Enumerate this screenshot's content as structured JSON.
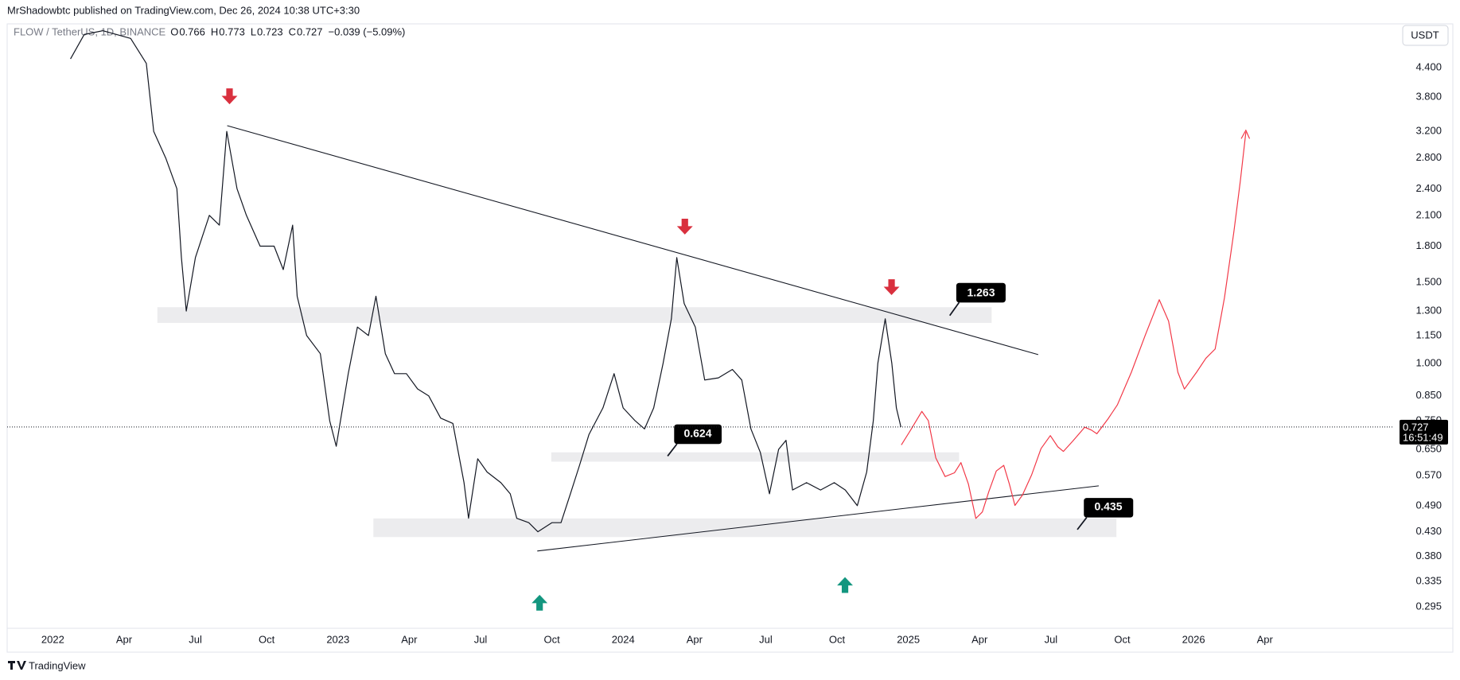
{
  "header": {
    "publisher": "MrShadowbtc published on TradingView.com, Dec 26, 2024 10:38 UTC+3:30",
    "symbol": "FLOW / TetherUS, 1D, BINANCE",
    "ohlc": [
      {
        "label": "O",
        "value": 0.766
      },
      {
        "label": "H",
        "value": 0.773
      },
      {
        "label": "L",
        "value": 0.723
      },
      {
        "label": "C",
        "value": 0.727
      }
    ],
    "change": "−0.039 (−5.09%)",
    "currency": "USDT"
  },
  "chart_data": {
    "type": "line",
    "log_scale": true,
    "color": "#131722",
    "grid": false,
    "x": [
      2022.062,
      2022.11,
      2022.175,
      2022.273,
      2022.328,
      2022.354,
      2022.396,
      2022.435,
      2022.451,
      2022.468,
      2022.5,
      2022.549,
      2022.584,
      2022.61,
      2022.646,
      2022.679,
      2022.727,
      2022.776,
      2022.808,
      2022.841,
      2022.857,
      2022.89,
      2022.938,
      2022.971,
      2022.994,
      2023.036,
      2023.068,
      2023.107,
      2023.133,
      2023.166,
      2023.198,
      2023.24,
      2023.279,
      2023.318,
      2023.36,
      2023.403,
      2023.442,
      2023.458,
      2023.49,
      2023.523,
      2023.571,
      2023.604,
      2023.627,
      2023.669,
      2023.701,
      2023.75,
      2023.782,
      2023.815,
      2023.847,
      2023.88,
      2023.929,
      2023.968,
      2024.0,
      2024.042,
      2024.075,
      2024.107,
      2024.14,
      2024.169,
      2024.188,
      2024.214,
      2024.253,
      2024.286,
      2024.334,
      2024.383,
      2024.416,
      2024.448,
      2024.481,
      2024.513,
      2024.545,
      2024.571,
      2024.594,
      2024.643,
      2024.692,
      2024.74,
      2024.779,
      2024.821,
      2024.854,
      2024.877,
      2024.893,
      2024.919,
      2024.942,
      2024.958,
      2024.974
    ],
    "values": [
      4.6,
      5.2,
      5.3,
      5.1,
      4.5,
      3.2,
      2.8,
      2.4,
      1.7,
      1.3,
      1.7,
      2.1,
      2.0,
      3.2,
      2.4,
      2.1,
      1.8,
      1.8,
      1.6,
      2.0,
      1.4,
      1.15,
      1.05,
      0.75,
      0.66,
      0.95,
      1.2,
      1.15,
      1.4,
      1.05,
      0.95,
      0.95,
      0.88,
      0.85,
      0.76,
      0.74,
      0.55,
      0.46,
      0.62,
      0.58,
      0.55,
      0.52,
      0.46,
      0.45,
      0.43,
      0.45,
      0.45,
      0.52,
      0.6,
      0.7,
      0.8,
      0.95,
      0.8,
      0.75,
      0.72,
      0.8,
      1.0,
      1.25,
      1.7,
      1.35,
      1.2,
      0.92,
      0.93,
      0.97,
      0.92,
      0.72,
      0.64,
      0.52,
      0.65,
      0.68,
      0.53,
      0.55,
      0.53,
      0.55,
      0.53,
      0.49,
      0.58,
      0.75,
      1.0,
      1.25,
      1.0,
      0.8,
      0.727
    ],
    "xlim": [
      2021.84,
      2026.7
    ],
    "ylim": [
      0.265,
      5.42
    ],
    "xticks": [
      2022,
      {
        "value": 2022.25,
        "label": "Apr"
      },
      {
        "value": 2022.5,
        "label": "Jul"
      },
      {
        "value": 2022.75,
        "label": "Oct"
      },
      2023,
      {
        "value": 2023.25,
        "label": "Apr"
      },
      {
        "value": 2023.5,
        "label": "Jul"
      },
      {
        "value": 2023.75,
        "label": "Oct"
      },
      2024,
      {
        "value": 2024.25,
        "label": "Apr"
      },
      {
        "value": 2024.5,
        "label": "Jul"
      },
      {
        "value": 2024.75,
        "label": "Oct"
      },
      2025,
      {
        "value": 2025.25,
        "label": "Apr"
      },
      {
        "value": 2025.5,
        "label": "Jul"
      },
      {
        "value": 2025.75,
        "label": "Oct"
      },
      2026,
      {
        "value": 2026.25,
        "label": "Apr"
      }
    ],
    "yticks": [
      {
        "value": 4.4,
        "label": "4.400"
      },
      {
        "value": 3.8,
        "label": "3.800"
      },
      {
        "value": 3.2,
        "label": "3.200"
      },
      {
        "value": 2.8,
        "label": "2.800"
      },
      {
        "value": 2.4,
        "label": "2.400"
      },
      {
        "value": 2.1,
        "label": "2.100"
      },
      {
        "value": 1.8,
        "label": "1.800"
      },
      {
        "value": 1.5,
        "label": "1.500"
      },
      {
        "value": 1.3,
        "label": "1.300"
      },
      {
        "value": 1.15,
        "label": "1.150"
      },
      {
        "value": 1.0,
        "label": "1.000"
      },
      {
        "value": 0.85,
        "label": "0.850"
      },
      {
        "value": 0.75,
        "label": "0.750"
      },
      {
        "value": 0.65,
        "label": "0.650"
      },
      {
        "value": 0.57,
        "label": "0.570"
      },
      {
        "value": 0.49,
        "label": "0.490"
      },
      {
        "value": 0.43,
        "label": "0.430"
      },
      {
        "value": 0.38,
        "label": "0.380"
      },
      {
        "value": 0.335,
        "label": "0.335"
      },
      {
        "value": 0.295,
        "label": "0.295"
      }
    ],
    "last_price": 0.727,
    "countdown": "16:51:49",
    "annotations": [
      1.263,
      0.624,
      0.435
    ]
  },
  "footer": {
    "brand": "TradingView"
  }
}
